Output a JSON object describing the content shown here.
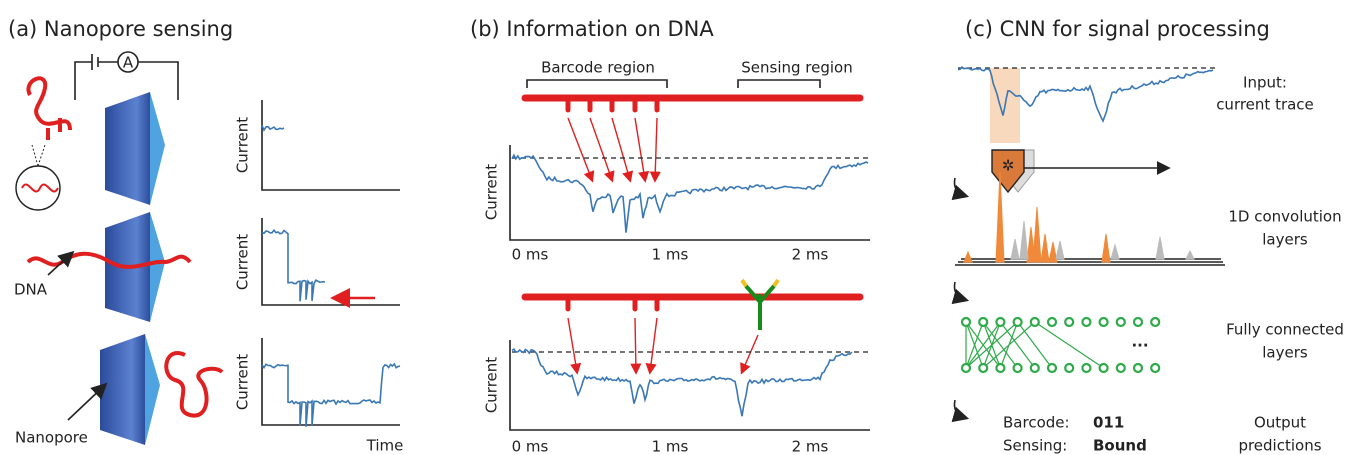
{
  "panel_a": {
    "title": "(a) Nanopore sensing",
    "y_labels": [
      "Current",
      "Current",
      "Current"
    ],
    "x_label": "Time",
    "dna_label": "DNA",
    "pore_label": "Nanopore",
    "ammeter": "A"
  },
  "panel_b": {
    "title": "(b) Information on DNA",
    "barcode_label": "Barcode region",
    "sensing_label": "Sensing region",
    "y_labels": [
      "Current",
      "Current"
    ],
    "top_ticks": [
      "0 ms",
      "1 ms",
      "2 ms"
    ],
    "bottom_ticks": [
      "0 ms",
      "1 ms",
      "2 ms"
    ]
  },
  "panel_c": {
    "title": "(c) CNN for signal processing",
    "input_label": [
      "Input:",
      "current trace"
    ],
    "conv_label": [
      "1D convolution",
      "layers"
    ],
    "fc_label": [
      "Fully connected",
      "layers"
    ],
    "ellipsis": "...",
    "output_label": [
      "Output",
      "predictions"
    ],
    "outputs": [
      {
        "name": "Barcode:",
        "value": "011"
      },
      {
        "name": "Sensing:",
        "value": "Bound"
      }
    ]
  }
}
